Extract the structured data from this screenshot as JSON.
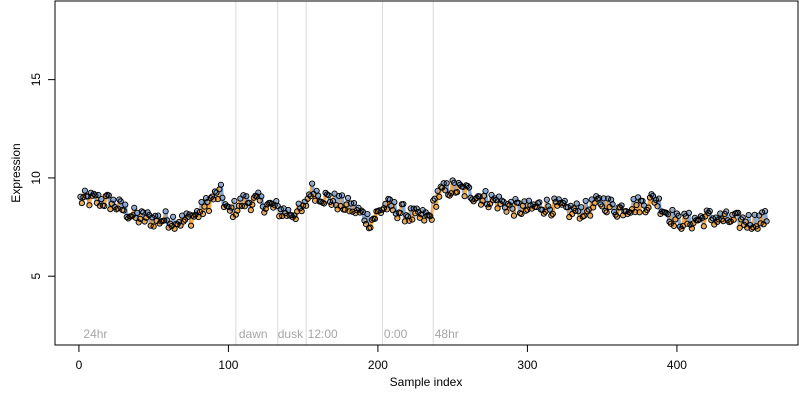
{
  "chart_data": {
    "type": "scatter",
    "xlabel": "Sample index",
    "ylabel": "Expression",
    "xlim": [
      -16,
      481
    ],
    "ylim": [
      1.5,
      19.0
    ],
    "x_ticks": [
      0,
      100,
      200,
      300,
      400
    ],
    "y_ticks": [
      5,
      10,
      15
    ],
    "grid": false,
    "series_colors": [
      "#f5a742",
      "#87a9d9"
    ],
    "vlines": [
      105,
      133,
      152,
      203,
      237
    ],
    "annotations": [
      {
        "x": 3,
        "text": "24hr"
      },
      {
        "x": 107,
        "text": "dawn"
      },
      {
        "x": 133,
        "text": "dusk"
      },
      {
        "x": 153,
        "text": "12:00"
      },
      {
        "x": 204,
        "text": "0:00"
      },
      {
        "x": 238,
        "text": "48hr"
      }
    ],
    "n_points": 460,
    "anchors": [
      [
        1,
        8.9
      ],
      [
        10,
        8.9
      ],
      [
        20,
        8.8
      ],
      [
        30,
        8.4
      ],
      [
        38,
        8.0
      ],
      [
        50,
        7.9
      ],
      [
        60,
        7.9
      ],
      [
        70,
        7.8
      ],
      [
        80,
        8.2
      ],
      [
        90,
        9.0
      ],
      [
        95,
        9.2
      ],
      [
        100,
        8.2
      ],
      [
        110,
        8.8
      ],
      [
        120,
        8.8
      ],
      [
        130,
        8.5
      ],
      [
        140,
        8.2
      ],
      [
        150,
        8.3
      ],
      [
        155,
        9.4
      ],
      [
        165,
        9.0
      ],
      [
        175,
        8.7
      ],
      [
        185,
        8.4
      ],
      [
        195,
        7.8
      ],
      [
        205,
        8.6
      ],
      [
        215,
        8.3
      ],
      [
        225,
        8.0
      ],
      [
        235,
        8.0
      ],
      [
        240,
        9.2
      ],
      [
        250,
        9.5
      ],
      [
        260,
        9.3
      ],
      [
        270,
        9.0
      ],
      [
        280,
        8.8
      ],
      [
        290,
        8.5
      ],
      [
        300,
        8.4
      ],
      [
        310,
        8.6
      ],
      [
        320,
        8.5
      ],
      [
        330,
        8.3
      ],
      [
        340,
        8.4
      ],
      [
        350,
        8.8
      ],
      [
        360,
        8.4
      ],
      [
        370,
        8.6
      ],
      [
        380,
        8.7
      ],
      [
        385,
        9.0
      ],
      [
        390,
        8.5
      ],
      [
        400,
        7.8
      ],
      [
        410,
        7.8
      ],
      [
        420,
        8.0
      ],
      [
        430,
        7.9
      ],
      [
        440,
        7.8
      ],
      [
        450,
        7.8
      ],
      [
        458,
        7.9
      ]
    ],
    "noise_amplitude": 0.45
  }
}
